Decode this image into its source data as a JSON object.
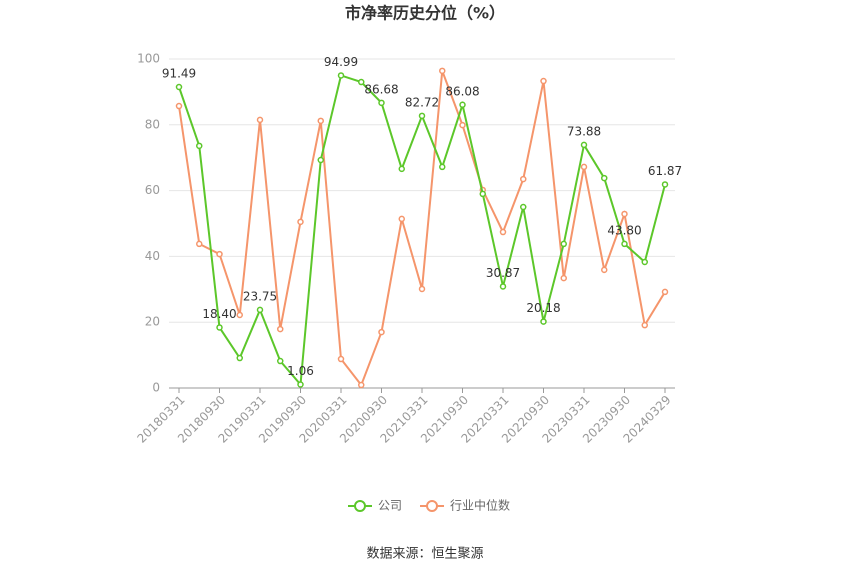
{
  "chart_data": {
    "type": "line",
    "title": "市净率历史分位（%）",
    "source": "数据来源：恒生聚源",
    "categories": [
      "20180331",
      null,
      "20180930",
      null,
      "20190331",
      null,
      "20190930",
      null,
      "20200331",
      null,
      "20200930",
      null,
      "20210331",
      null,
      "20210930",
      null,
      "20220331",
      null,
      "20220930",
      null,
      "20230331",
      null,
      "20230930",
      null,
      "20240329"
    ],
    "series": [
      {
        "name": "公司",
        "color": "#5cc72a",
        "values": [
          91.49,
          73.6,
          18.4,
          9.1,
          23.75,
          8.2,
          1.06,
          69.3,
          94.99,
          93.0,
          86.68,
          66.6,
          82.72,
          67.2,
          86.08,
          59.0,
          30.87,
          55.0,
          20.18,
          43.8,
          73.88,
          63.8,
          43.8,
          38.3,
          61.87
        ],
        "value_labels": [
          "91.49",
          null,
          "18.40",
          null,
          "23.75",
          null,
          "1.06",
          null,
          "94.99",
          null,
          "86.68",
          null,
          "82.72",
          null,
          "86.08",
          null,
          "30.87",
          null,
          "20.18",
          null,
          "73.88",
          null,
          "43.80",
          null,
          "61.87"
        ]
      },
      {
        "name": "行业中位数",
        "color": "#f5956b",
        "values": [
          85.7,
          43.8,
          40.7,
          22.2,
          81.5,
          17.9,
          50.5,
          81.2,
          8.8,
          0.9,
          17.0,
          51.4,
          30.1,
          96.4,
          79.9,
          60.2,
          47.4,
          63.5,
          93.3,
          33.4,
          67.2,
          35.9,
          52.9,
          19.1,
          29.2
        ]
      }
    ],
    "ylim": [
      0,
      100
    ],
    "yticks": [
      0,
      20,
      40,
      60,
      80,
      100
    ],
    "grid": true,
    "legend": "bottom"
  }
}
